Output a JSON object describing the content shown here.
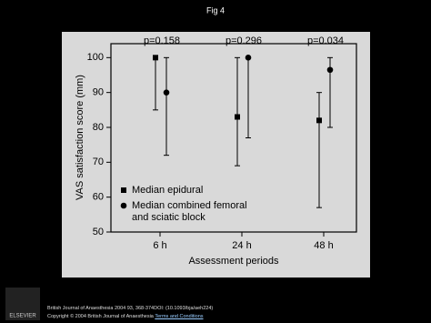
{
  "header": {
    "title": "Fig 4"
  },
  "chart_data": {
    "type": "errorbar",
    "annotations": [
      "p=0.158",
      "p=0.296",
      "p=0.034"
    ],
    "x_label": "Assessment periods",
    "y_label": "VAS satisfaction score (mm)",
    "categories": [
      "6 h",
      "24 h",
      "48 h"
    ],
    "ylim": [
      50,
      104
    ],
    "yticks": [
      50,
      60,
      70,
      80,
      90,
      100
    ],
    "series": [
      {
        "name": "Median epidural",
        "marker": "square",
        "color": "#000000",
        "values": [
          100,
          83,
          82
        ],
        "low": [
          85,
          69,
          57
        ],
        "high": [
          100,
          100,
          90
        ]
      },
      {
        "name": "Median combined femoral and sciatic block",
        "marker": "circle",
        "color": "#000000",
        "values": [
          90,
          100,
          96.5
        ],
        "low": [
          72,
          77,
          80
        ],
        "high": [
          100,
          100,
          100
        ]
      }
    ],
    "legend": "lower-left"
  },
  "footer": {
    "citation": "British Journal of Anaesthesia 2004 93, 368-374DOI: (10.1093/bja/aeh224)",
    "copyright": "Copyright © 2004 British Journal of Anaesthesia",
    "link": "Terms and Conditions",
    "logo": "ELSEVIER"
  }
}
